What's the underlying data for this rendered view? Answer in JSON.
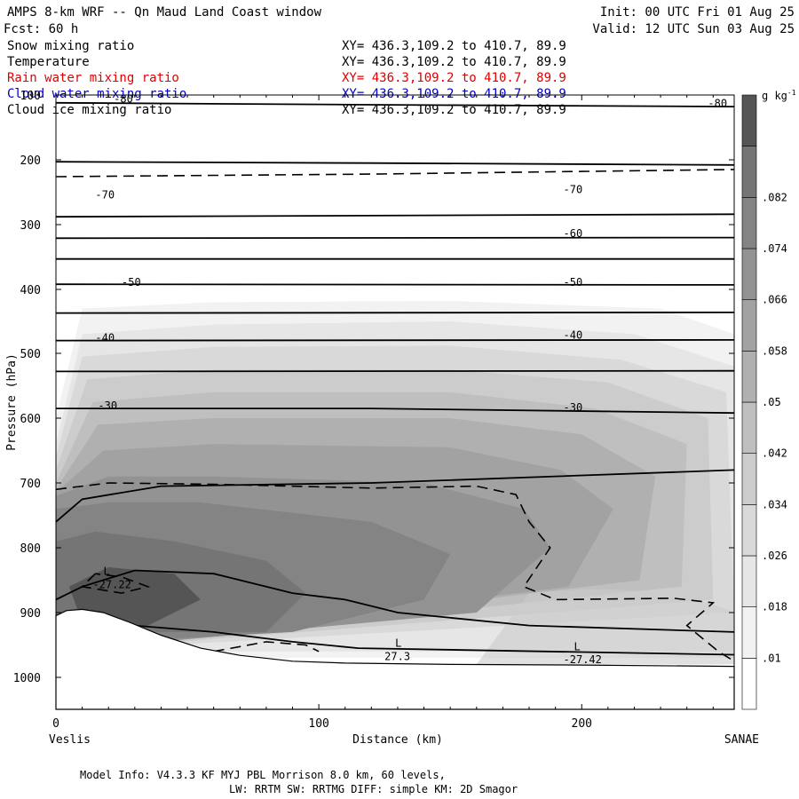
{
  "header": {
    "title": "AMPS 8-km WRF -- Qn Maud Land Coast window",
    "fcst": "Fcst:   60 h",
    "init": "Init: 00 UTC Fri 01 Aug 25",
    "valid": "Valid: 12 UTC Sun 03 Aug 25"
  },
  "variables": [
    {
      "name": "Snow mixing ratio",
      "xy": "XY= 436.3,109.2 to 410.7, 89.9",
      "color": "#000000"
    },
    {
      "name": "Temperature",
      "xy": "XY= 436.3,109.2 to 410.7, 89.9",
      "color": "#000000"
    },
    {
      "name": "Rain water mixing ratio",
      "xy": "XY= 436.3,109.2 to 410.7, 89.9",
      "color": "#e00000"
    },
    {
      "name": "Cloud water mixing ratio",
      "xy": "XY= 436.3,109.2 to 410.7, 89.9",
      "color": "#0000c0"
    },
    {
      "name": "Cloud ice mixing ratio",
      "xy": "XY= 436.3,109.2 to 410.7, 89.9",
      "color": "#000000"
    }
  ],
  "footer": {
    "line1": "Model Info: V4.3.3   KF     MYJ PBL  Morrison           8.0 km,  60 levels,",
    "line2": "LW: RRTM SW: RRTMG   DIFF: simple KM: 2D Smagor"
  },
  "chart_data": {
    "type": "cross-section",
    "ylabel": "Pressure (hPa)",
    "xlabel": "Distance (km)",
    "x_left_label": "Veslis",
    "x_right_label": "SANAE",
    "xlim": [
      0,
      258
    ],
    "ylim": [
      1050,
      100
    ],
    "xticks": [
      0,
      100,
      200
    ],
    "yticks": [
      100,
      200,
      300,
      400,
      500,
      600,
      700,
      800,
      900,
      1000
    ],
    "colorbar": {
      "unit": "g kg",
      "unit_sup": "-1",
      "levels": [
        0,
        0.01,
        0.018,
        0.026,
        0.034,
        0.042,
        0.05,
        0.058,
        0.066,
        0.074,
        0.082,
        0.09
      ],
      "labels": [
        ".01",
        ".018",
        ".026",
        ".034",
        ".042",
        ".05",
        ".058",
        ".066",
        ".074",
        ".082"
      ],
      "colors": [
        "#ffffff",
        "#f2f2f2",
        "#e6e6e6",
        "#d9d9d9",
        "#cccccc",
        "#bfbfbf",
        "#b0b0b0",
        "#a2a2a2",
        "#939393",
        "#848484",
        "#757575",
        "#555555"
      ]
    },
    "temperature_contour_labels": [
      {
        "text": "-80",
        "x": 248,
        "p": 117
      },
      {
        "text": "-80",
        "x": 22,
        "p": 110
      },
      {
        "text": "-70",
        "x": 15,
        "p": 258
      },
      {
        "text": "-70",
        "x": 193,
        "p": 250
      },
      {
        "text": "-60",
        "x": 193,
        "p": 318
      },
      {
        "text": "-50",
        "x": 25,
        "p": 393
      },
      {
        "text": "-50",
        "x": 193,
        "p": 393
      },
      {
        "text": "-40",
        "x": 15,
        "p": 480
      },
      {
        "text": "-40",
        "x": 193,
        "p": 476
      },
      {
        "text": "-30",
        "x": 16,
        "p": 585
      },
      {
        "text": "-30",
        "x": 193,
        "p": 588
      }
    ],
    "minima_labels": [
      {
        "text": "L",
        "x": 14,
        "p": 842,
        "value": "-27.22",
        "vp": 862
      },
      {
        "text": "L",
        "x": 125,
        "p": 953,
        "value": "27.3",
        "vp": 973
      },
      {
        "text": "L",
        "x": 193,
        "p": 958,
        "value": "-27.42",
        "vp": 978
      }
    ]
  }
}
